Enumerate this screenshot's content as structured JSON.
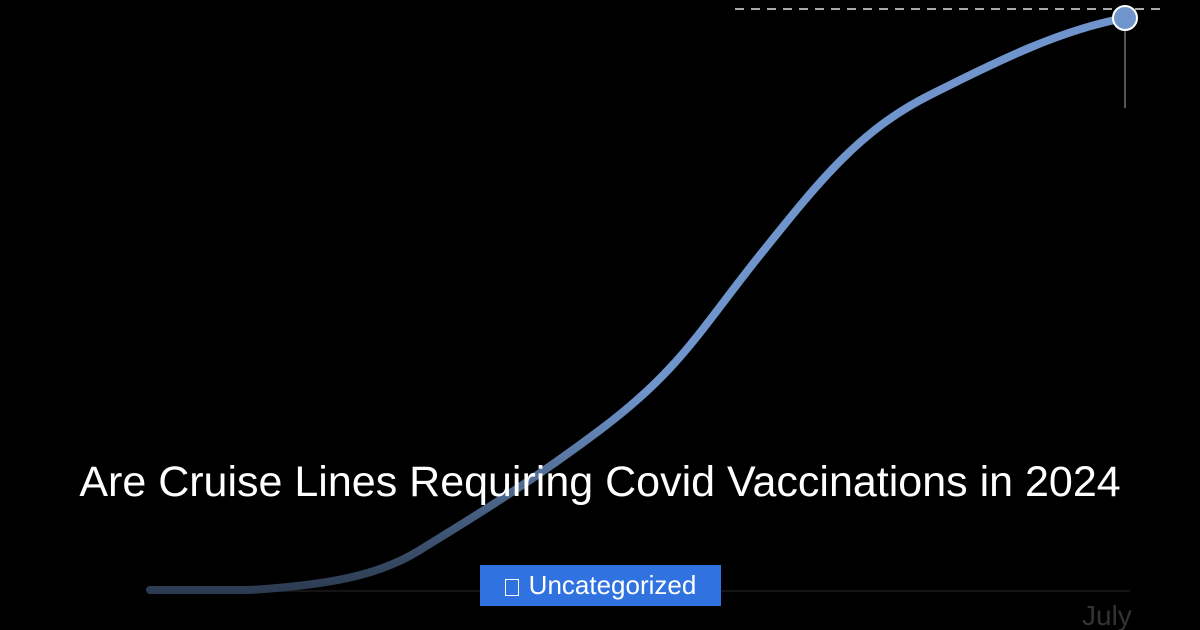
{
  "header": {
    "title": "Are Cruise Lines Requiring Covid Vaccinations in 2024"
  },
  "category": {
    "label": "Uncategorized"
  },
  "axis": {
    "label": "July"
  }
}
